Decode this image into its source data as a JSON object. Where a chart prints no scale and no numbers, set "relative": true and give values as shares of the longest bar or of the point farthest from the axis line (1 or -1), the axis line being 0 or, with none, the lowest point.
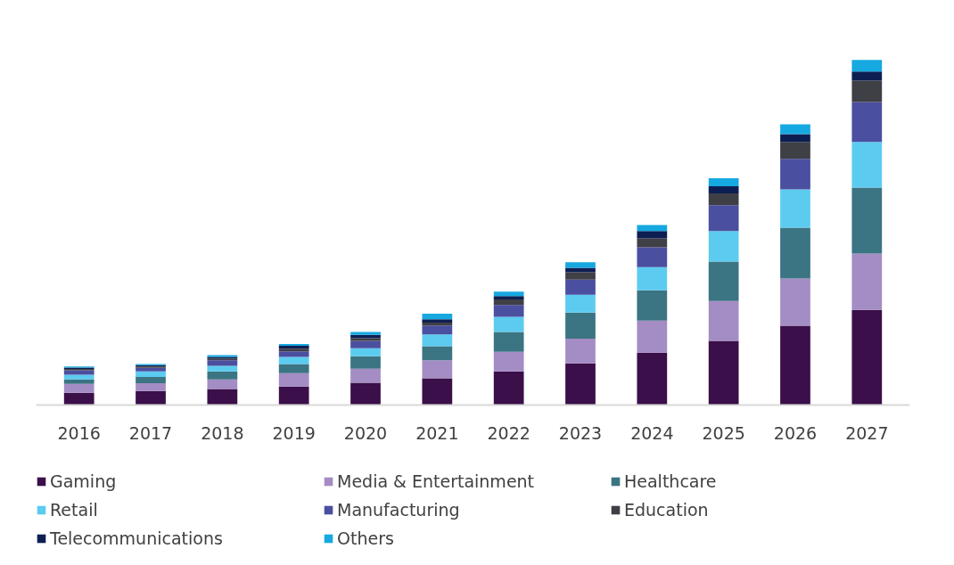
{
  "chart_data": {
    "type": "bar",
    "stacked": true,
    "relative": true,
    "legend": "bottom",
    "grid": false,
    "categories": [
      "2016",
      "2017",
      "2018",
      "2019",
      "2020",
      "2021",
      "2022",
      "2023",
      "2024",
      "2025",
      "2026",
      "2027"
    ],
    "series": [
      {
        "name": "Gaming",
        "color": "#3b0f4a",
        "values": [
          0.036,
          0.041,
          0.047,
          0.054,
          0.065,
          0.078,
          0.098,
          0.121,
          0.152,
          0.186,
          0.23,
          0.276
        ]
      },
      {
        "name": "Media & Entertainment",
        "color": "#a48cc4",
        "values": [
          0.026,
          0.023,
          0.028,
          0.039,
          0.041,
          0.052,
          0.057,
          0.072,
          0.093,
          0.116,
          0.137,
          0.163
        ]
      },
      {
        "name": "Healthcare",
        "color": "#3b7482",
        "values": [
          0.013,
          0.018,
          0.023,
          0.026,
          0.036,
          0.041,
          0.057,
          0.075,
          0.088,
          0.114,
          0.147,
          0.191
        ]
      },
      {
        "name": "Retail",
        "color": "#5ccbf0",
        "values": [
          0.013,
          0.016,
          0.016,
          0.021,
          0.023,
          0.034,
          0.044,
          0.052,
          0.067,
          0.088,
          0.111,
          0.132
        ]
      },
      {
        "name": "Manufacturing",
        "color": "#4a4fa0",
        "values": [
          0.013,
          0.01,
          0.016,
          0.016,
          0.021,
          0.026,
          0.034,
          0.044,
          0.057,
          0.075,
          0.088,
          0.116
        ]
      },
      {
        "name": "Education",
        "color": "#3f3f46",
        "values": [
          0.004,
          0.004,
          0.005,
          0.008,
          0.008,
          0.008,
          0.016,
          0.021,
          0.026,
          0.034,
          0.049,
          0.062
        ]
      },
      {
        "name": "Telecommunications",
        "color": "#0d1f52",
        "values": [
          0.004,
          0.004,
          0.005,
          0.008,
          0.01,
          0.01,
          0.01,
          0.013,
          0.021,
          0.021,
          0.023,
          0.026
        ]
      },
      {
        "name": "Others",
        "color": "#16a8e0",
        "values": [
          0.003,
          0.003,
          0.005,
          0.005,
          0.008,
          0.016,
          0.013,
          0.016,
          0.018,
          0.023,
          0.028,
          0.034
        ]
      }
    ]
  }
}
